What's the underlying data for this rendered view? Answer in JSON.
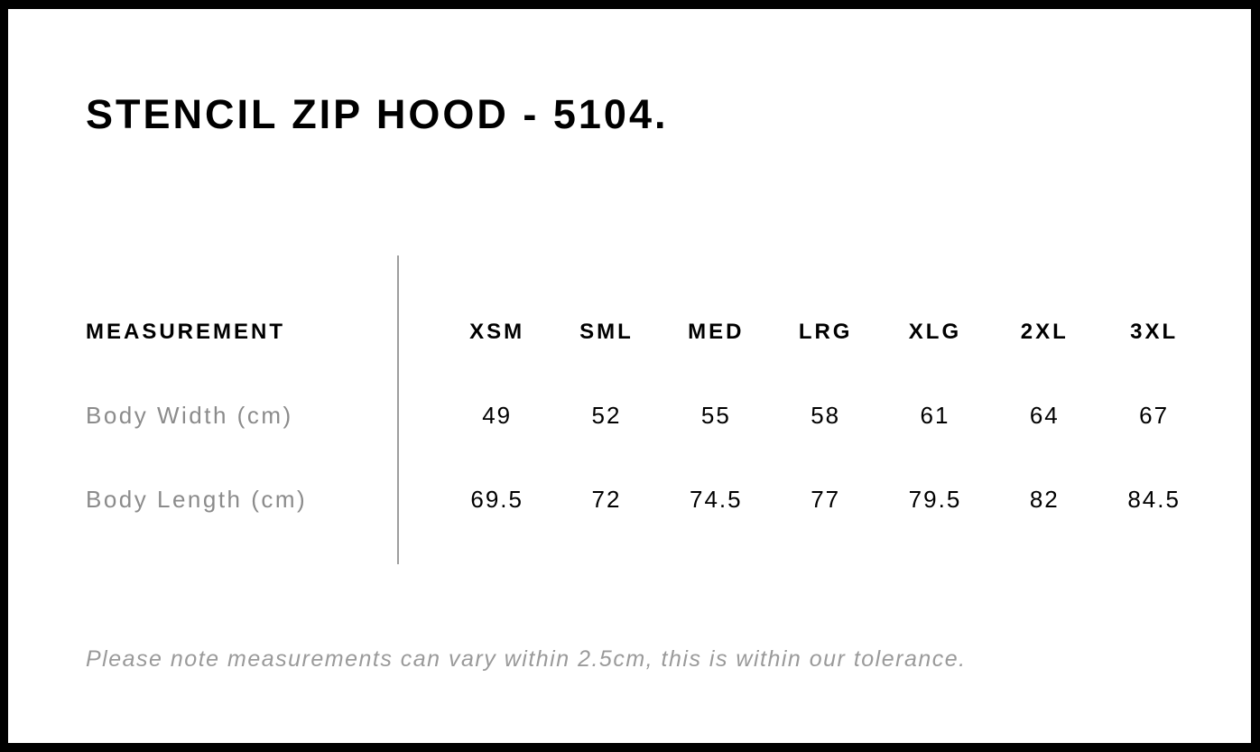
{
  "page": {
    "title": "STENCIL ZIP HOOD - 5104.",
    "note": "Please note measurements can vary within 2.5cm, this is within our tolerance."
  },
  "table": {
    "measurement_header": "MEASUREMENT",
    "size_columns": [
      "XSM",
      "SML",
      "MED",
      "LRG",
      "XLG",
      "2XL",
      "3XL"
    ],
    "rows": [
      {
        "label": "Body Width (cm)",
        "values": [
          "49",
          "52",
          "55",
          "58",
          "61",
          "64",
          "67"
        ]
      },
      {
        "label": "Body Length (cm)",
        "values": [
          "69.5",
          "72",
          "74.5",
          "77",
          "79.5",
          "82",
          "84.5"
        ]
      }
    ]
  },
  "colors": {
    "background": "#ffffff",
    "frame_border": "#000000",
    "text_primary": "#000000",
    "text_secondary": "#8b8b8b",
    "note_text": "#9a9a9a",
    "divider": "#9e9e9e"
  }
}
